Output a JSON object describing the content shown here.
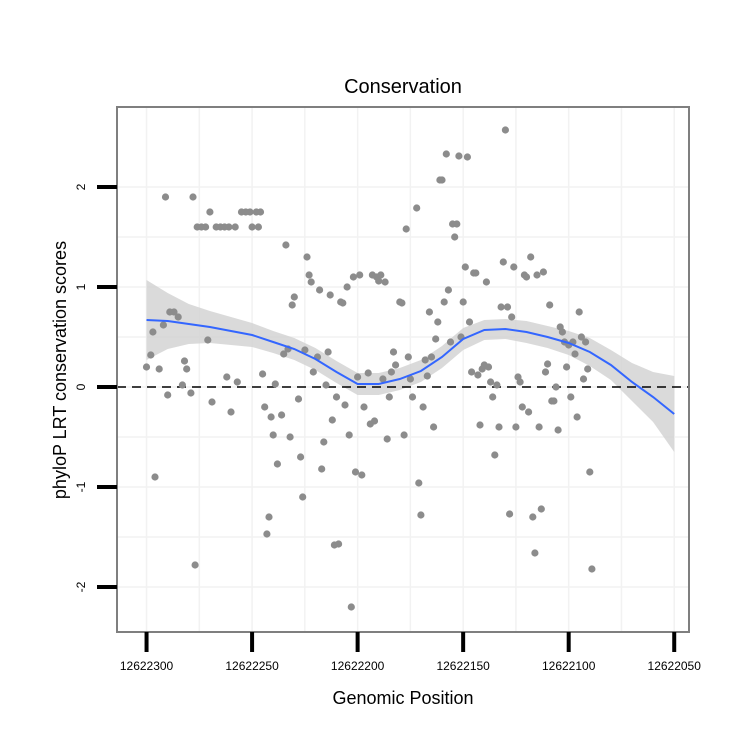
{
  "chart_data": {
    "type": "scatter",
    "title": "Conservation",
    "xlabel": "Genomic Position",
    "ylabel": "phyloP LRT conservation scores",
    "x_reversed": true,
    "xlim": [
      12622314,
      12622043
    ],
    "ylim": [
      -2.45,
      2.8
    ],
    "x_ticks": [
      12622300,
      12622250,
      12622200,
      12622150,
      12622100,
      12622050
    ],
    "x_tick_labels": [
      "12622300",
      "12622250",
      "12622200",
      "12622150",
      "12622100",
      "12622050"
    ],
    "y_ticks": [
      -2,
      -1,
      0,
      1,
      2
    ],
    "y_tick_labels": [
      "-2",
      "-1",
      "0",
      "1",
      "2"
    ],
    "reference_line": {
      "y": 0,
      "style": "dashed"
    },
    "colors": {
      "points": "#8c8c8c",
      "smooth": "#3366ff",
      "ribbon": "#d3d3d3",
      "panel_border": "#7f7f7f",
      "grid": "#f2f2f2"
    },
    "points": [
      [
        12622300,
        0.2
      ],
      [
        12622298,
        0.32
      ],
      [
        12622297,
        0.55
      ],
      [
        12622296,
        -0.9
      ],
      [
        12622294,
        0.18
      ],
      [
        12622292,
        0.62
      ],
      [
        12622291,
        1.9
      ],
      [
        12622290,
        -0.08
      ],
      [
        12622289,
        0.75
      ],
      [
        12622287,
        0.75
      ],
      [
        12622285,
        0.7
      ],
      [
        12622283,
        0.02
      ],
      [
        12622282,
        0.26
      ],
      [
        12622281,
        0.18
      ],
      [
        12622279,
        -0.06
      ],
      [
        12622278,
        1.9
      ],
      [
        12622277,
        -1.78
      ],
      [
        12622276,
        1.6
      ],
      [
        12622274,
        1.6
      ],
      [
        12622272,
        1.6
      ],
      [
        12622271,
        0.47
      ],
      [
        12622270,
        1.75
      ],
      [
        12622269,
        -0.15
      ],
      [
        12622267,
        1.6
      ],
      [
        12622265,
        1.6
      ],
      [
        12622263,
        1.6
      ],
      [
        12622262,
        0.1
      ],
      [
        12622261,
        1.6
      ],
      [
        12622260,
        -0.25
      ],
      [
        12622258,
        1.6
      ],
      [
        12622257,
        0.05
      ],
      [
        12622255,
        1.75
      ],
      [
        12622253,
        1.75
      ],
      [
        12622251,
        1.75
      ],
      [
        12622250,
        1.6
      ],
      [
        12622248,
        1.75
      ],
      [
        12622247,
        1.6
      ],
      [
        12622246,
        1.75
      ],
      [
        12622245,
        0.13
      ],
      [
        12622244,
        -0.2
      ],
      [
        12622243,
        -1.47
      ],
      [
        12622242,
        -1.3
      ],
      [
        12622241,
        -0.3
      ],
      [
        12622240,
        -0.48
      ],
      [
        12622239,
        0.03
      ],
      [
        12622238,
        -0.77
      ],
      [
        12622236,
        -0.28
      ],
      [
        12622235,
        0.33
      ],
      [
        12622234,
        1.42
      ],
      [
        12622233,
        0.38
      ],
      [
        12622232,
        -0.5
      ],
      [
        12622231,
        0.82
      ],
      [
        12622230,
        0.9
      ],
      [
        12622228,
        -0.12
      ],
      [
        12622227,
        -0.7
      ],
      [
        12622226,
        -1.1
      ],
      [
        12622225,
        0.37
      ],
      [
        12622224,
        1.3
      ],
      [
        12622223,
        1.12
      ],
      [
        12622222,
        1.05
      ],
      [
        12622221,
        0.15
      ],
      [
        12622219,
        0.3
      ],
      [
        12622218,
        0.97
      ],
      [
        12622217,
        -0.82
      ],
      [
        12622216,
        -0.55
      ],
      [
        12622215,
        0.02
      ],
      [
        12622214,
        0.35
      ],
      [
        12622213,
        0.92
      ],
      [
        12622212,
        -0.33
      ],
      [
        12622211,
        -1.58
      ],
      [
        12622210,
        -0.1
      ],
      [
        12622209,
        -1.57
      ],
      [
        12622208,
        0.85
      ],
      [
        12622207,
        0.84
      ],
      [
        12622206,
        -0.18
      ],
      [
        12622205,
        1.0
      ],
      [
        12622204,
        -0.48
      ],
      [
        12622203,
        -2.2
      ],
      [
        12622202,
        1.1
      ],
      [
        12622201,
        -0.85
      ],
      [
        12622200,
        0.1
      ],
      [
        12622199,
        1.12
      ],
      [
        12622198,
        -0.88
      ],
      [
        12622197,
        -0.2
      ],
      [
        12622195,
        0.14
      ],
      [
        12622194,
        -0.37
      ],
      [
        12622193,
        1.12
      ],
      [
        12622192,
        -0.34
      ],
      [
        12622191,
        1.1
      ],
      [
        12622190,
        1.06
      ],
      [
        12622189,
        1.12
      ],
      [
        12622188,
        0.08
      ],
      [
        12622187,
        1.05
      ],
      [
        12622186,
        -0.52
      ],
      [
        12622185,
        -0.1
      ],
      [
        12622184,
        0.15
      ],
      [
        12622183,
        0.35
      ],
      [
        12622182,
        0.22
      ],
      [
        12622180,
        0.85
      ],
      [
        12622179,
        0.84
      ],
      [
        12622178,
        -0.48
      ],
      [
        12622177,
        1.58
      ],
      [
        12622176,
        0.3
      ],
      [
        12622175,
        0.08
      ],
      [
        12622174,
        -0.1
      ],
      [
        12622172,
        1.79
      ],
      [
        12622171,
        -0.96
      ],
      [
        12622170,
        -1.28
      ],
      [
        12622169,
        -0.2
      ],
      [
        12622168,
        0.27
      ],
      [
        12622167,
        0.11
      ],
      [
        12622166,
        0.75
      ],
      [
        12622165,
        0.3
      ],
      [
        12622164,
        -0.4
      ],
      [
        12622163,
        0.48
      ],
      [
        12622162,
        0.65
      ],
      [
        12622161,
        2.07
      ],
      [
        12622160,
        2.07
      ],
      [
        12622159,
        0.85
      ],
      [
        12622158,
        2.33
      ],
      [
        12622157,
        0.97
      ],
      [
        12622156,
        0.45
      ],
      [
        12622155,
        1.63
      ],
      [
        12622154,
        1.5
      ],
      [
        12622153,
        1.63
      ],
      [
        12622152,
        2.31
      ],
      [
        12622151,
        0.5
      ],
      [
        12622150,
        0.85
      ],
      [
        12622149,
        1.2
      ],
      [
        12622148,
        2.3
      ],
      [
        12622147,
        0.65
      ],
      [
        12622146,
        0.15
      ],
      [
        12622145,
        1.14
      ],
      [
        12622144,
        1.14
      ],
      [
        12622143,
        0.12
      ],
      [
        12622142,
        -0.38
      ],
      [
        12622141,
        0.18
      ],
      [
        12622140,
        0.22
      ],
      [
        12622139,
        1.05
      ],
      [
        12622138,
        0.2
      ],
      [
        12622137,
        0.05
      ],
      [
        12622136,
        -0.1
      ],
      [
        12622135,
        -0.68
      ],
      [
        12622134,
        0.02
      ],
      [
        12622133,
        -0.4
      ],
      [
        12622132,
        0.8
      ],
      [
        12622131,
        1.25
      ],
      [
        12622130,
        2.57
      ],
      [
        12622129,
        0.8
      ],
      [
        12622128,
        -1.27
      ],
      [
        12622127,
        0.7
      ],
      [
        12622126,
        1.2
      ],
      [
        12622125,
        -0.4
      ],
      [
        12622124,
        0.1
      ],
      [
        12622123,
        0.05
      ],
      [
        12622122,
        -0.2
      ],
      [
        12622121,
        1.12
      ],
      [
        12622120,
        1.1
      ],
      [
        12622119,
        -0.25
      ],
      [
        12622118,
        1.3
      ],
      [
        12622117,
        -1.3
      ],
      [
        12622116,
        -1.66
      ],
      [
        12622115,
        1.12
      ],
      [
        12622114,
        -0.4
      ],
      [
        12622113,
        -1.22
      ],
      [
        12622112,
        1.15
      ],
      [
        12622111,
        0.15
      ],
      [
        12622110,
        0.23
      ],
      [
        12622109,
        0.82
      ],
      [
        12622108,
        -0.14
      ],
      [
        12622107,
        -0.14
      ],
      [
        12622106,
        0.0
      ],
      [
        12622105,
        -0.43
      ],
      [
        12622104,
        0.6
      ],
      [
        12622103,
        0.55
      ],
      [
        12622102,
        0.45
      ],
      [
        12622101,
        0.2
      ],
      [
        12622100,
        0.42
      ],
      [
        12622099,
        -0.1
      ],
      [
        12622098,
        0.45
      ],
      [
        12622097,
        0.33
      ],
      [
        12622096,
        -0.3
      ],
      [
        12622095,
        0.75
      ],
      [
        12622094,
        0.5
      ],
      [
        12622093,
        0.08
      ],
      [
        12622092,
        0.45
      ],
      [
        12622091,
        0.18
      ],
      [
        12622090,
        -0.85
      ],
      [
        12622089,
        -1.82
      ]
    ],
    "smooth": {
      "x": [
        12622300,
        12622290,
        12622280,
        12622270,
        12622260,
        12622250,
        12622240,
        12622230,
        12622220,
        12622210,
        12622200,
        12622190,
        12622180,
        12622170,
        12622160,
        12622150,
        12622140,
        12622130,
        12622120,
        12622110,
        12622100,
        12622090,
        12622080,
        12622070,
        12622060,
        12622050
      ],
      "fit": [
        0.67,
        0.66,
        0.63,
        0.6,
        0.56,
        0.52,
        0.45,
        0.38,
        0.28,
        0.15,
        0.03,
        0.03,
        0.08,
        0.16,
        0.3,
        0.48,
        0.57,
        0.58,
        0.55,
        0.5,
        0.44,
        0.35,
        0.22,
        0.05,
        -0.1,
        -0.27
      ],
      "ci_low": [
        0.27,
        0.38,
        0.43,
        0.44,
        0.42,
        0.4,
        0.34,
        0.27,
        0.17,
        0.04,
        -0.08,
        -0.08,
        -0.03,
        0.05,
        0.19,
        0.37,
        0.47,
        0.48,
        0.44,
        0.39,
        0.32,
        0.21,
        0.07,
        -0.14,
        -0.35,
        -0.65
      ],
      "ci_high": [
        1.07,
        0.94,
        0.83,
        0.76,
        0.7,
        0.64,
        0.56,
        0.49,
        0.39,
        0.26,
        0.14,
        0.14,
        0.19,
        0.27,
        0.41,
        0.59,
        0.67,
        0.68,
        0.66,
        0.61,
        0.56,
        0.49,
        0.37,
        0.24,
        0.15,
        0.11
      ]
    }
  }
}
